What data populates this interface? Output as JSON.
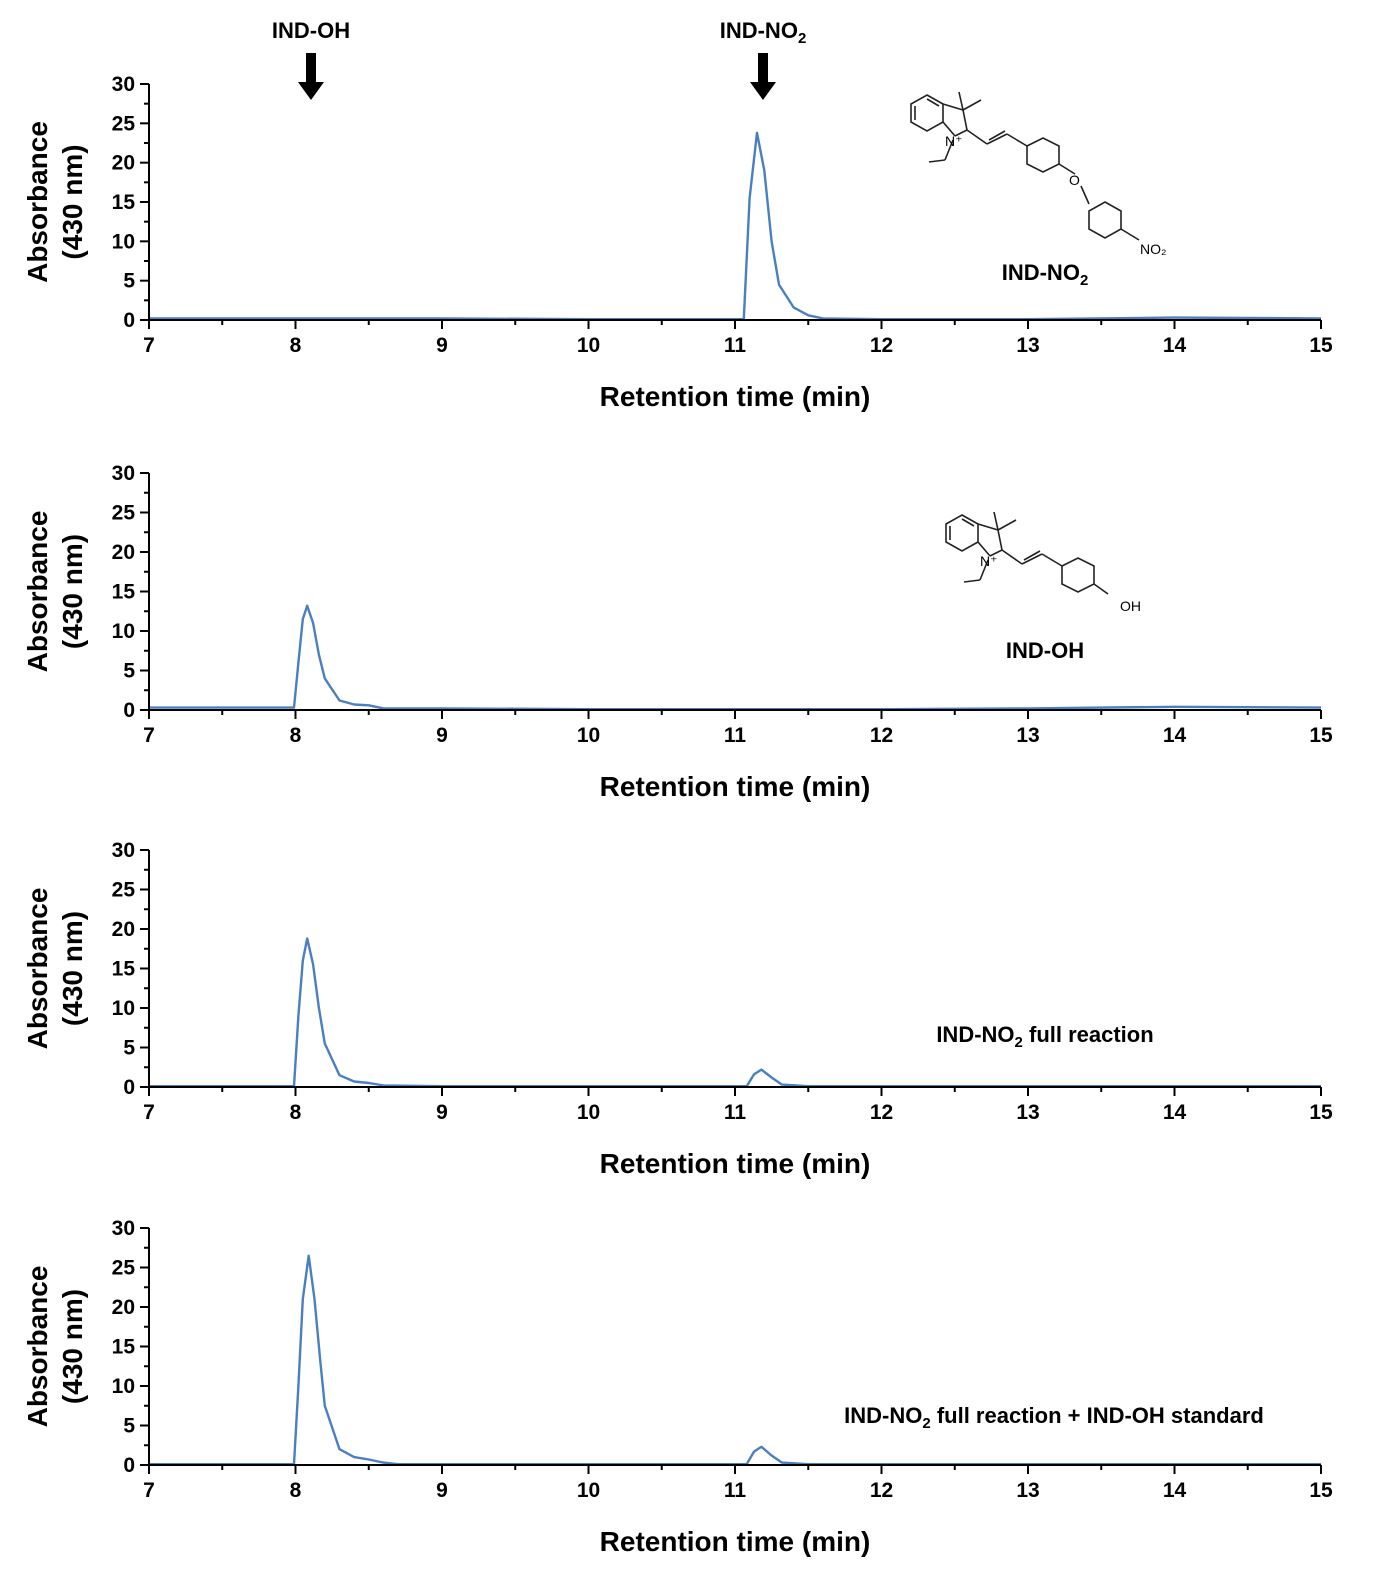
{
  "colors": {
    "trace": "#4a7fc1",
    "axis": "#000000"
  },
  "annotations": {
    "arrow_left": "IND-OH",
    "arrow_right_base": "IND-NO",
    "arrow_right_sub": "2"
  },
  "chart_data": [
    {
      "type": "line",
      "xlabel": "Retention time (min)",
      "ylabel_line1": "Absorbance",
      "ylabel_line2": "(430 nm)",
      "xlim": [
        7,
        15
      ],
      "ylim": [
        0,
        30
      ],
      "xticks": [
        "7",
        "8",
        "9",
        "10",
        "11",
        "12",
        "13",
        "14",
        "15"
      ],
      "yticks": [
        "0",
        "5",
        "10",
        "15",
        "20",
        "25",
        "30"
      ],
      "label_base": "IND-NO",
      "label_sub": "2",
      "label_rest": "",
      "series": [
        {
          "x": [
            7,
            8.0,
            8.5,
            9,
            10,
            11.0,
            11.06,
            11.1,
            11.15,
            11.2,
            11.25,
            11.3,
            11.4,
            11.5,
            11.6,
            12,
            13,
            14,
            15
          ],
          "y": [
            0.2,
            0.2,
            0.2,
            0.2,
            0.1,
            0.1,
            0.1,
            15.5,
            23.8,
            19.0,
            10.0,
            4.5,
            1.6,
            0.6,
            0.2,
            0.1,
            0.1,
            0.3,
            0.2
          ]
        }
      ]
    },
    {
      "type": "line",
      "xlabel": "Retention time (min)",
      "ylabel_line1": "Absorbance",
      "ylabel_line2": "(430 nm)",
      "xlim": [
        7,
        15
      ],
      "ylim": [
        0,
        30
      ],
      "xticks": [
        "7",
        "8",
        "9",
        "10",
        "11",
        "12",
        "13",
        "14",
        "15"
      ],
      "yticks": [
        "0",
        "5",
        "10",
        "15",
        "20",
        "25",
        "30"
      ],
      "label_base": "IND-OH",
      "label_sub": "",
      "label_rest": "",
      "series": [
        {
          "x": [
            7,
            7.99,
            8.02,
            8.05,
            8.08,
            8.12,
            8.16,
            8.2,
            8.3,
            8.4,
            8.5,
            8.6,
            9,
            10,
            11,
            12,
            13,
            14,
            15
          ],
          "y": [
            0.3,
            0.3,
            6.0,
            11.5,
            13.2,
            11.0,
            7.0,
            4.0,
            1.2,
            0.7,
            0.6,
            0.2,
            0.2,
            0.1,
            0.1,
            0.1,
            0.2,
            0.4,
            0.3
          ]
        }
      ]
    },
    {
      "type": "line",
      "xlabel": "Retention time (min)",
      "ylabel_line1": "Absorbance",
      "ylabel_line2": "(430 nm)",
      "xlim": [
        7,
        15
      ],
      "ylim": [
        0,
        30
      ],
      "xticks": [
        "7",
        "8",
        "9",
        "10",
        "11",
        "12",
        "13",
        "14",
        "15"
      ],
      "yticks": [
        "0",
        "5",
        "10",
        "15",
        "20",
        "25",
        "30"
      ],
      "label_base": "IND-NO",
      "label_sub": "2",
      "label_rest": " full reaction",
      "series": [
        {
          "x": [
            7,
            7.99,
            8.02,
            8.05,
            8.08,
            8.12,
            8.16,
            8.2,
            8.3,
            8.4,
            8.5,
            8.6,
            9,
            10,
            11.08,
            11.13,
            11.18,
            11.25,
            11.32,
            11.5,
            12,
            13,
            14,
            15
          ],
          "y": [
            0.1,
            0.1,
            9.0,
            16.0,
            18.8,
            15.5,
            10.0,
            5.5,
            1.5,
            0.7,
            0.5,
            0.2,
            0.1,
            0.1,
            0.1,
            1.6,
            2.2,
            1.2,
            0.3,
            0.1,
            0.1,
            0.1,
            0.1,
            0.1
          ]
        }
      ]
    },
    {
      "type": "line",
      "xlabel": "Retention time (min)",
      "ylabel_line1": "Absorbance",
      "ylabel_line2": "(430 nm)",
      "xlim": [
        7,
        15
      ],
      "ylim": [
        0,
        30
      ],
      "xticks": [
        "7",
        "8",
        "9",
        "10",
        "11",
        "12",
        "13",
        "14",
        "15"
      ],
      "yticks": [
        "0",
        "5",
        "10",
        "15",
        "20",
        "25",
        "30"
      ],
      "label_base": "IND-NO",
      "label_sub": "2",
      "label_rest": " full reaction + IND-OH standard",
      "series": [
        {
          "x": [
            7,
            7.99,
            8.02,
            8.05,
            8.09,
            8.13,
            8.17,
            8.2,
            8.3,
            8.4,
            8.5,
            8.6,
            8.7,
            9,
            10,
            11.08,
            11.13,
            11.18,
            11.25,
            11.32,
            11.5,
            12,
            13,
            14,
            15
          ],
          "y": [
            0.1,
            0.1,
            10.0,
            21.0,
            26.5,
            21.0,
            13.0,
            7.5,
            2.0,
            1.0,
            0.7,
            0.3,
            0.1,
            0.1,
            0.1,
            0.1,
            1.7,
            2.3,
            1.2,
            0.3,
            0.1,
            0.1,
            0.1,
            0.1,
            0.1
          ]
        }
      ]
    }
  ]
}
